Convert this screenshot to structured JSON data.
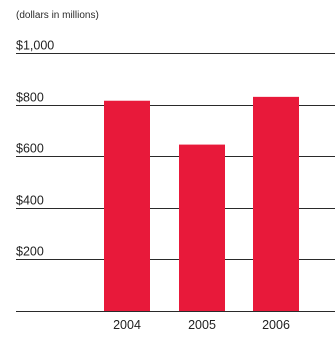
{
  "chart_data": {
    "type": "bar",
    "title": "",
    "subtitle": "(dollars in millions)",
    "xlabel": "",
    "ylabel": "",
    "categories": [
      "2004",
      "2005",
      "2006"
    ],
    "values": [
      815,
      645,
      830
    ],
    "ylim": [
      0,
      1000
    ],
    "yticks": [
      0,
      200,
      400,
      600,
      800,
      1000
    ],
    "ytick_labels": [
      "",
      "$200",
      "$400",
      "$600",
      "$800",
      "$1,000"
    ],
    "grid": true,
    "legend": "none",
    "bar_color": "#e8193a",
    "grid_color": "#2a2a2a",
    "text_color": "#222222"
  }
}
